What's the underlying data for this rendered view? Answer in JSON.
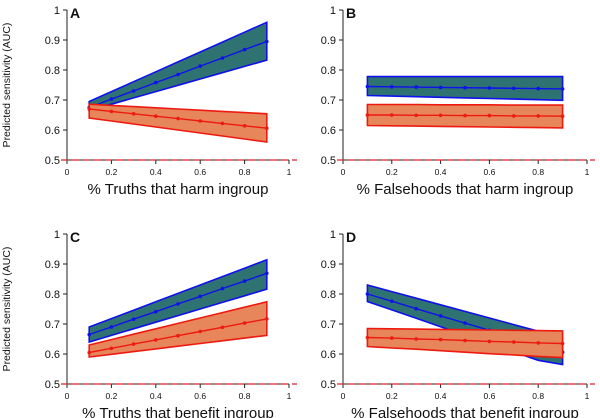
{
  "colors": {
    "blue_line": "#1010ee",
    "blue_fill": "#2e7371",
    "red_line": "#ee1a10",
    "red_fill": "#e6865a",
    "ref_line": "#e02020"
  },
  "chart_data": [
    {
      "type": "line",
      "panel_label": "A",
      "title": "",
      "xlabel": "% Truths that harm ingroup",
      "ylabel": "Predicted sensitivity (AUC)",
      "xlim": [
        0,
        1
      ],
      "ylim": [
        0.5,
        1
      ],
      "x_ticks": [
        "0",
        "0.2",
        "0.4",
        "0.6",
        "0.8",
        "1"
      ],
      "y_ticks": [
        "0.5",
        "0.6",
        "0.7",
        "0.8",
        "0.9",
        "1"
      ],
      "reference_line": 0.5,
      "series": [
        {
          "color": "blue",
          "x": [
            0.1,
            0.2,
            0.3,
            0.4,
            0.5,
            0.6,
            0.7,
            0.8,
            0.9
          ],
          "y": [
            0.675,
            0.703,
            0.73,
            0.758,
            0.785,
            0.813,
            0.84,
            0.868,
            0.895
          ],
          "lower": [
            0.665,
            0.686,
            0.707,
            0.728,
            0.749,
            0.77,
            0.791,
            0.812,
            0.833
          ],
          "upper": [
            0.695,
            0.728,
            0.761,
            0.794,
            0.827,
            0.86,
            0.893,
            0.926,
            0.959
          ]
        },
        {
          "color": "red",
          "x": [
            0.1,
            0.2,
            0.3,
            0.4,
            0.5,
            0.6,
            0.7,
            0.8,
            0.9
          ],
          "y": [
            0.67,
            0.662,
            0.654,
            0.646,
            0.638,
            0.63,
            0.622,
            0.614,
            0.606
          ],
          "lower": [
            0.64,
            0.63,
            0.62,
            0.61,
            0.6,
            0.59,
            0.58,
            0.57,
            0.56
          ],
          "upper": [
            0.686,
            0.682,
            0.678,
            0.674,
            0.67,
            0.666,
            0.662,
            0.658,
            0.654
          ]
        }
      ]
    },
    {
      "type": "line",
      "panel_label": "B",
      "title": "",
      "xlabel": "% Falsehoods that harm ingroup",
      "ylabel": "",
      "xlim": [
        0,
        1
      ],
      "ylim": [
        0.5,
        1
      ],
      "x_ticks": [
        "0",
        "0.2",
        "0.4",
        "0.6",
        "0.8",
        "1"
      ],
      "y_ticks": [
        "0.5",
        "0.6",
        "0.7",
        "0.8",
        "0.9",
        "1"
      ],
      "reference_line": 0.5,
      "series": [
        {
          "color": "blue",
          "x": [
            0.1,
            0.2,
            0.3,
            0.4,
            0.5,
            0.6,
            0.7,
            0.8,
            0.9
          ],
          "y": [
            0.745,
            0.744,
            0.743,
            0.742,
            0.741,
            0.74,
            0.739,
            0.738,
            0.737
          ],
          "lower": [
            0.715,
            0.713,
            0.711,
            0.709,
            0.707,
            0.705,
            0.703,
            0.701,
            0.699
          ],
          "upper": [
            0.778,
            0.778,
            0.778,
            0.778,
            0.778,
            0.778,
            0.778,
            0.778,
            0.778
          ]
        },
        {
          "color": "red",
          "x": [
            0.1,
            0.2,
            0.3,
            0.4,
            0.5,
            0.6,
            0.7,
            0.8,
            0.9
          ],
          "y": [
            0.65,
            0.65,
            0.649,
            0.649,
            0.648,
            0.648,
            0.647,
            0.647,
            0.646
          ],
          "lower": [
            0.615,
            0.614,
            0.613,
            0.612,
            0.611,
            0.61,
            0.609,
            0.608,
            0.607
          ],
          "upper": [
            0.685,
            0.685,
            0.685,
            0.684,
            0.684,
            0.684,
            0.683,
            0.683,
            0.683
          ]
        }
      ]
    },
    {
      "type": "line",
      "panel_label": "C",
      "title": "",
      "xlabel": "% Truths that benefit ingroup",
      "ylabel": "Predicted sensitivity (AUC)",
      "xlim": [
        0,
        1
      ],
      "ylim": [
        0.5,
        1
      ],
      "x_ticks": [
        "0",
        "0.2",
        "0.4",
        "0.6",
        "0.8",
        "1"
      ],
      "y_ticks": [
        "0.5",
        "0.6",
        "0.7",
        "0.8",
        "0.9",
        "1"
      ],
      "reference_line": 0.5,
      "series": [
        {
          "color": "blue",
          "x": [
            0.1,
            0.2,
            0.3,
            0.4,
            0.5,
            0.6,
            0.7,
            0.8,
            0.9
          ],
          "y": [
            0.665,
            0.69,
            0.716,
            0.741,
            0.767,
            0.792,
            0.818,
            0.843,
            0.869
          ],
          "lower": [
            0.64,
            0.662,
            0.684,
            0.706,
            0.728,
            0.75,
            0.772,
            0.794,
            0.816
          ],
          "upper": [
            0.69,
            0.718,
            0.746,
            0.774,
            0.802,
            0.83,
            0.858,
            0.886,
            0.914
          ]
        },
        {
          "color": "red",
          "x": [
            0.1,
            0.2,
            0.3,
            0.4,
            0.5,
            0.6,
            0.7,
            0.8,
            0.9
          ],
          "y": [
            0.605,
            0.619,
            0.633,
            0.647,
            0.661,
            0.675,
            0.689,
            0.703,
            0.717
          ],
          "lower": [
            0.59,
            0.599,
            0.608,
            0.617,
            0.626,
            0.635,
            0.644,
            0.653,
            0.662
          ],
          "upper": [
            0.63,
            0.648,
            0.666,
            0.684,
            0.702,
            0.72,
            0.738,
            0.756,
            0.774
          ]
        }
      ]
    },
    {
      "type": "line",
      "panel_label": "D",
      "title": "",
      "xlabel": "% Falsehoods that benefit ingroup",
      "ylabel": "",
      "xlim": [
        0,
        1
      ],
      "ylim": [
        0.5,
        1
      ],
      "x_ticks": [
        "0",
        "0.2",
        "0.4",
        "0.6",
        "0.8",
        "1"
      ],
      "y_ticks": [
        "0.5",
        "0.6",
        "0.7",
        "0.8",
        "0.9",
        "1"
      ],
      "reference_line": 0.5,
      "series": [
        {
          "color": "blue",
          "x": [
            0.1,
            0.2,
            0.3,
            0.4,
            0.5,
            0.6,
            0.7,
            0.8,
            0.9
          ],
          "y": [
            0.8,
            0.776,
            0.751,
            0.727,
            0.703,
            0.679,
            0.654,
            0.63,
            0.606
          ],
          "lower": [
            0.775,
            0.747,
            0.719,
            0.691,
            0.663,
            0.635,
            0.607,
            0.579,
            0.565
          ],
          "upper": [
            0.83,
            0.808,
            0.786,
            0.764,
            0.742,
            0.72,
            0.698,
            0.676,
            0.654
          ]
        },
        {
          "color": "red",
          "x": [
            0.1,
            0.2,
            0.3,
            0.4,
            0.5,
            0.6,
            0.7,
            0.8,
            0.9
          ],
          "y": [
            0.655,
            0.653,
            0.65,
            0.648,
            0.645,
            0.642,
            0.64,
            0.637,
            0.635
          ],
          "lower": [
            0.625,
            0.62,
            0.616,
            0.611,
            0.606,
            0.601,
            0.597,
            0.592,
            0.588
          ],
          "upper": [
            0.685,
            0.684,
            0.683,
            0.682,
            0.681,
            0.68,
            0.679,
            0.678,
            0.677
          ]
        }
      ]
    }
  ]
}
